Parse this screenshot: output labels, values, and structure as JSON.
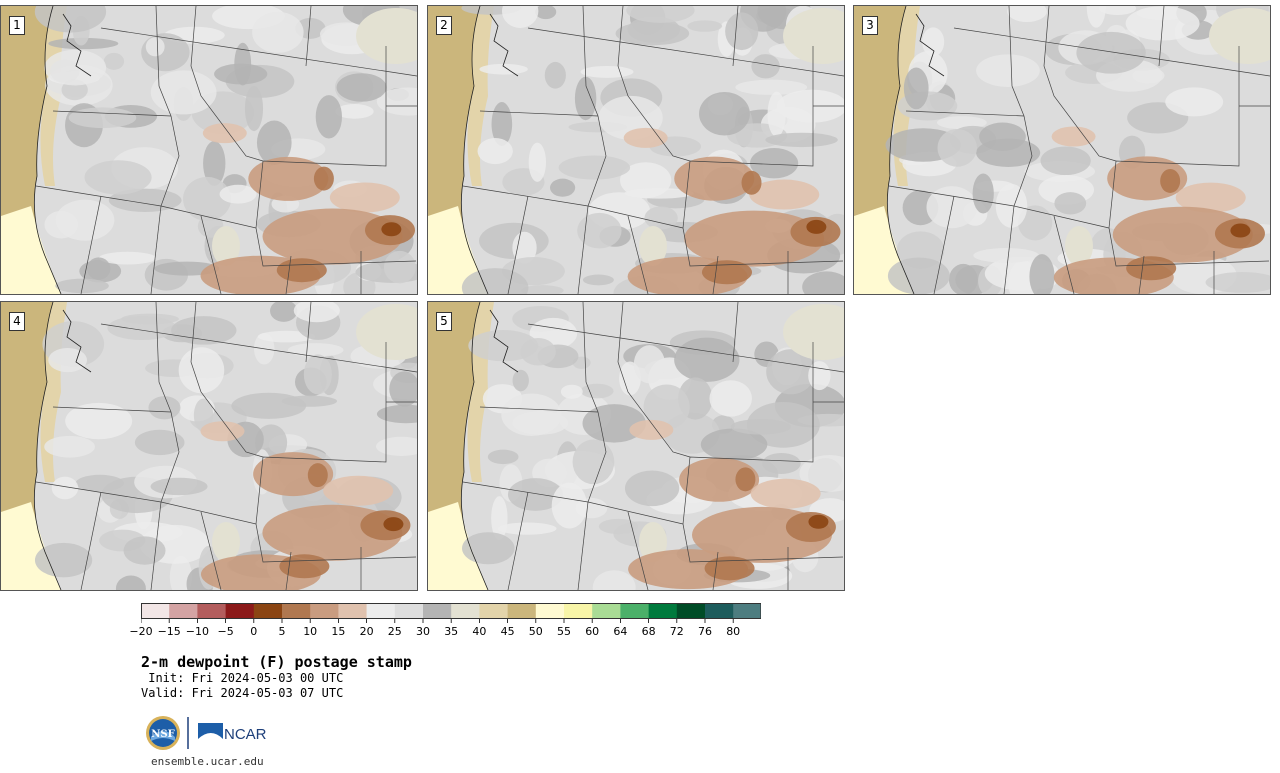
{
  "panels": [
    {
      "label": "1"
    },
    {
      "label": "2"
    },
    {
      "label": "3"
    },
    {
      "label": "4"
    },
    {
      "label": "5"
    }
  ],
  "colorbar": {
    "colors": [
      "#f2e6e6",
      "#d4a3a3",
      "#b35d5d",
      "#8c1a1a",
      "#8b4513",
      "#b07850",
      "#c99c80",
      "#e0c2ae",
      "#ececec",
      "#dedede",
      "#b4b4b4",
      "#e3e1d2",
      "#e3d4aa",
      "#cbb67c",
      "#fffad2",
      "#f8f5a8",
      "#a9dc95",
      "#4bb069",
      "#007a3d",
      "#004c27",
      "#1d5c5c",
      "#4d7d80"
    ],
    "labels": [
      "−20",
      "−15",
      "−10",
      "−5",
      "0",
      "5",
      "10",
      "15",
      "20",
      "25",
      "30",
      "35",
      "40",
      "45",
      "50",
      "55",
      "60",
      "64",
      "68",
      "72",
      "76",
      "80"
    ]
  },
  "title": "2-m dewpoint (F) postage stamp",
  "init": " Init: Fri 2024-05-03 00 UTC",
  "valid": "Valid: Fri 2024-05-03 07 UTC",
  "logos": {
    "nsf": "NSF",
    "ncar": "NCAR"
  },
  "site": "ensemble.ucar.edu"
}
